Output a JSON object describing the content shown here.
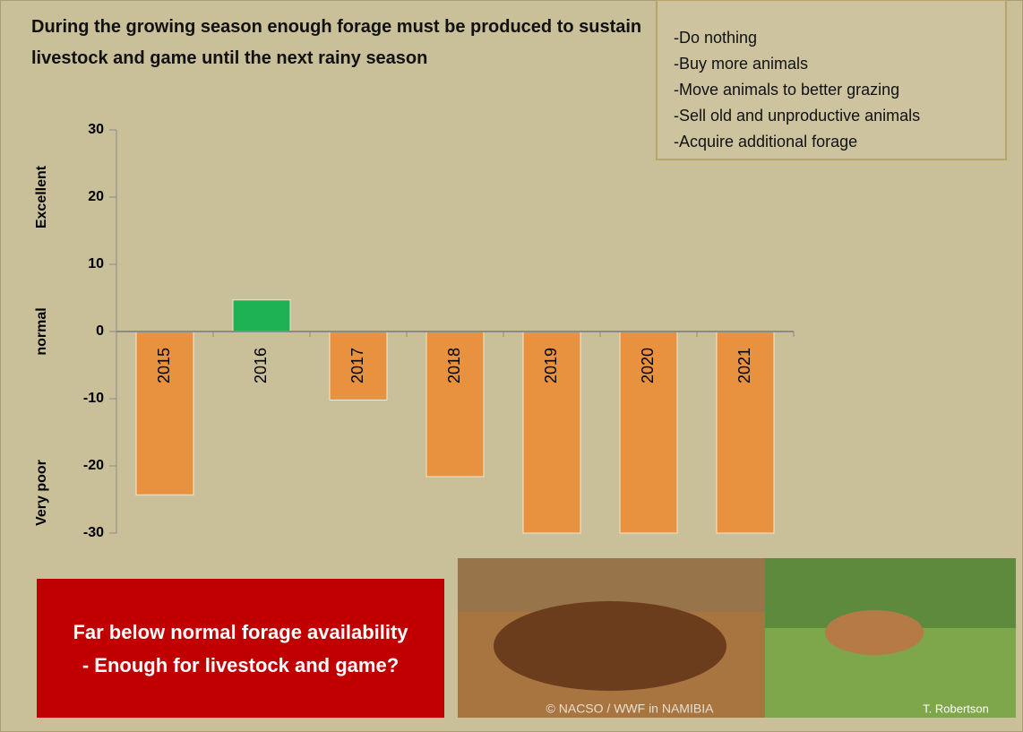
{
  "subtitle": "During the growing season enough forage must be produced to sustain livestock and game until the next rainy season",
  "options": [
    "-Do nothing",
    "-Buy more animals",
    "-Move animals to better grazing",
    "-Sell old and unproductive animals",
    "-Acquire additional forage"
  ],
  "callout": "Far below normal forage availability - Enough for livestock and game?",
  "photo_credits": [
    "© NACSO / WWF in NAMIBIA",
    "T. Robertson"
  ],
  "chart_data": {
    "type": "bar",
    "categories": [
      "2015",
      "2016",
      "2017",
      "2018",
      "2019",
      "2020",
      "2021"
    ],
    "values": [
      -24.3,
      4.7,
      -10.2,
      -21.6,
      -30,
      -30,
      -30
    ],
    "colors": [
      "#e8913f",
      "#1fb254",
      "#e8913f",
      "#e8913f",
      "#e8913f",
      "#e8913f",
      "#e8913f"
    ],
    "ylim": [
      -30,
      30
    ],
    "yticks": [
      30,
      20,
      10,
      0,
      -10,
      -20,
      -30
    ],
    "y_axis_labels": [
      "Excellent",
      "normal",
      "Very poor"
    ]
  }
}
